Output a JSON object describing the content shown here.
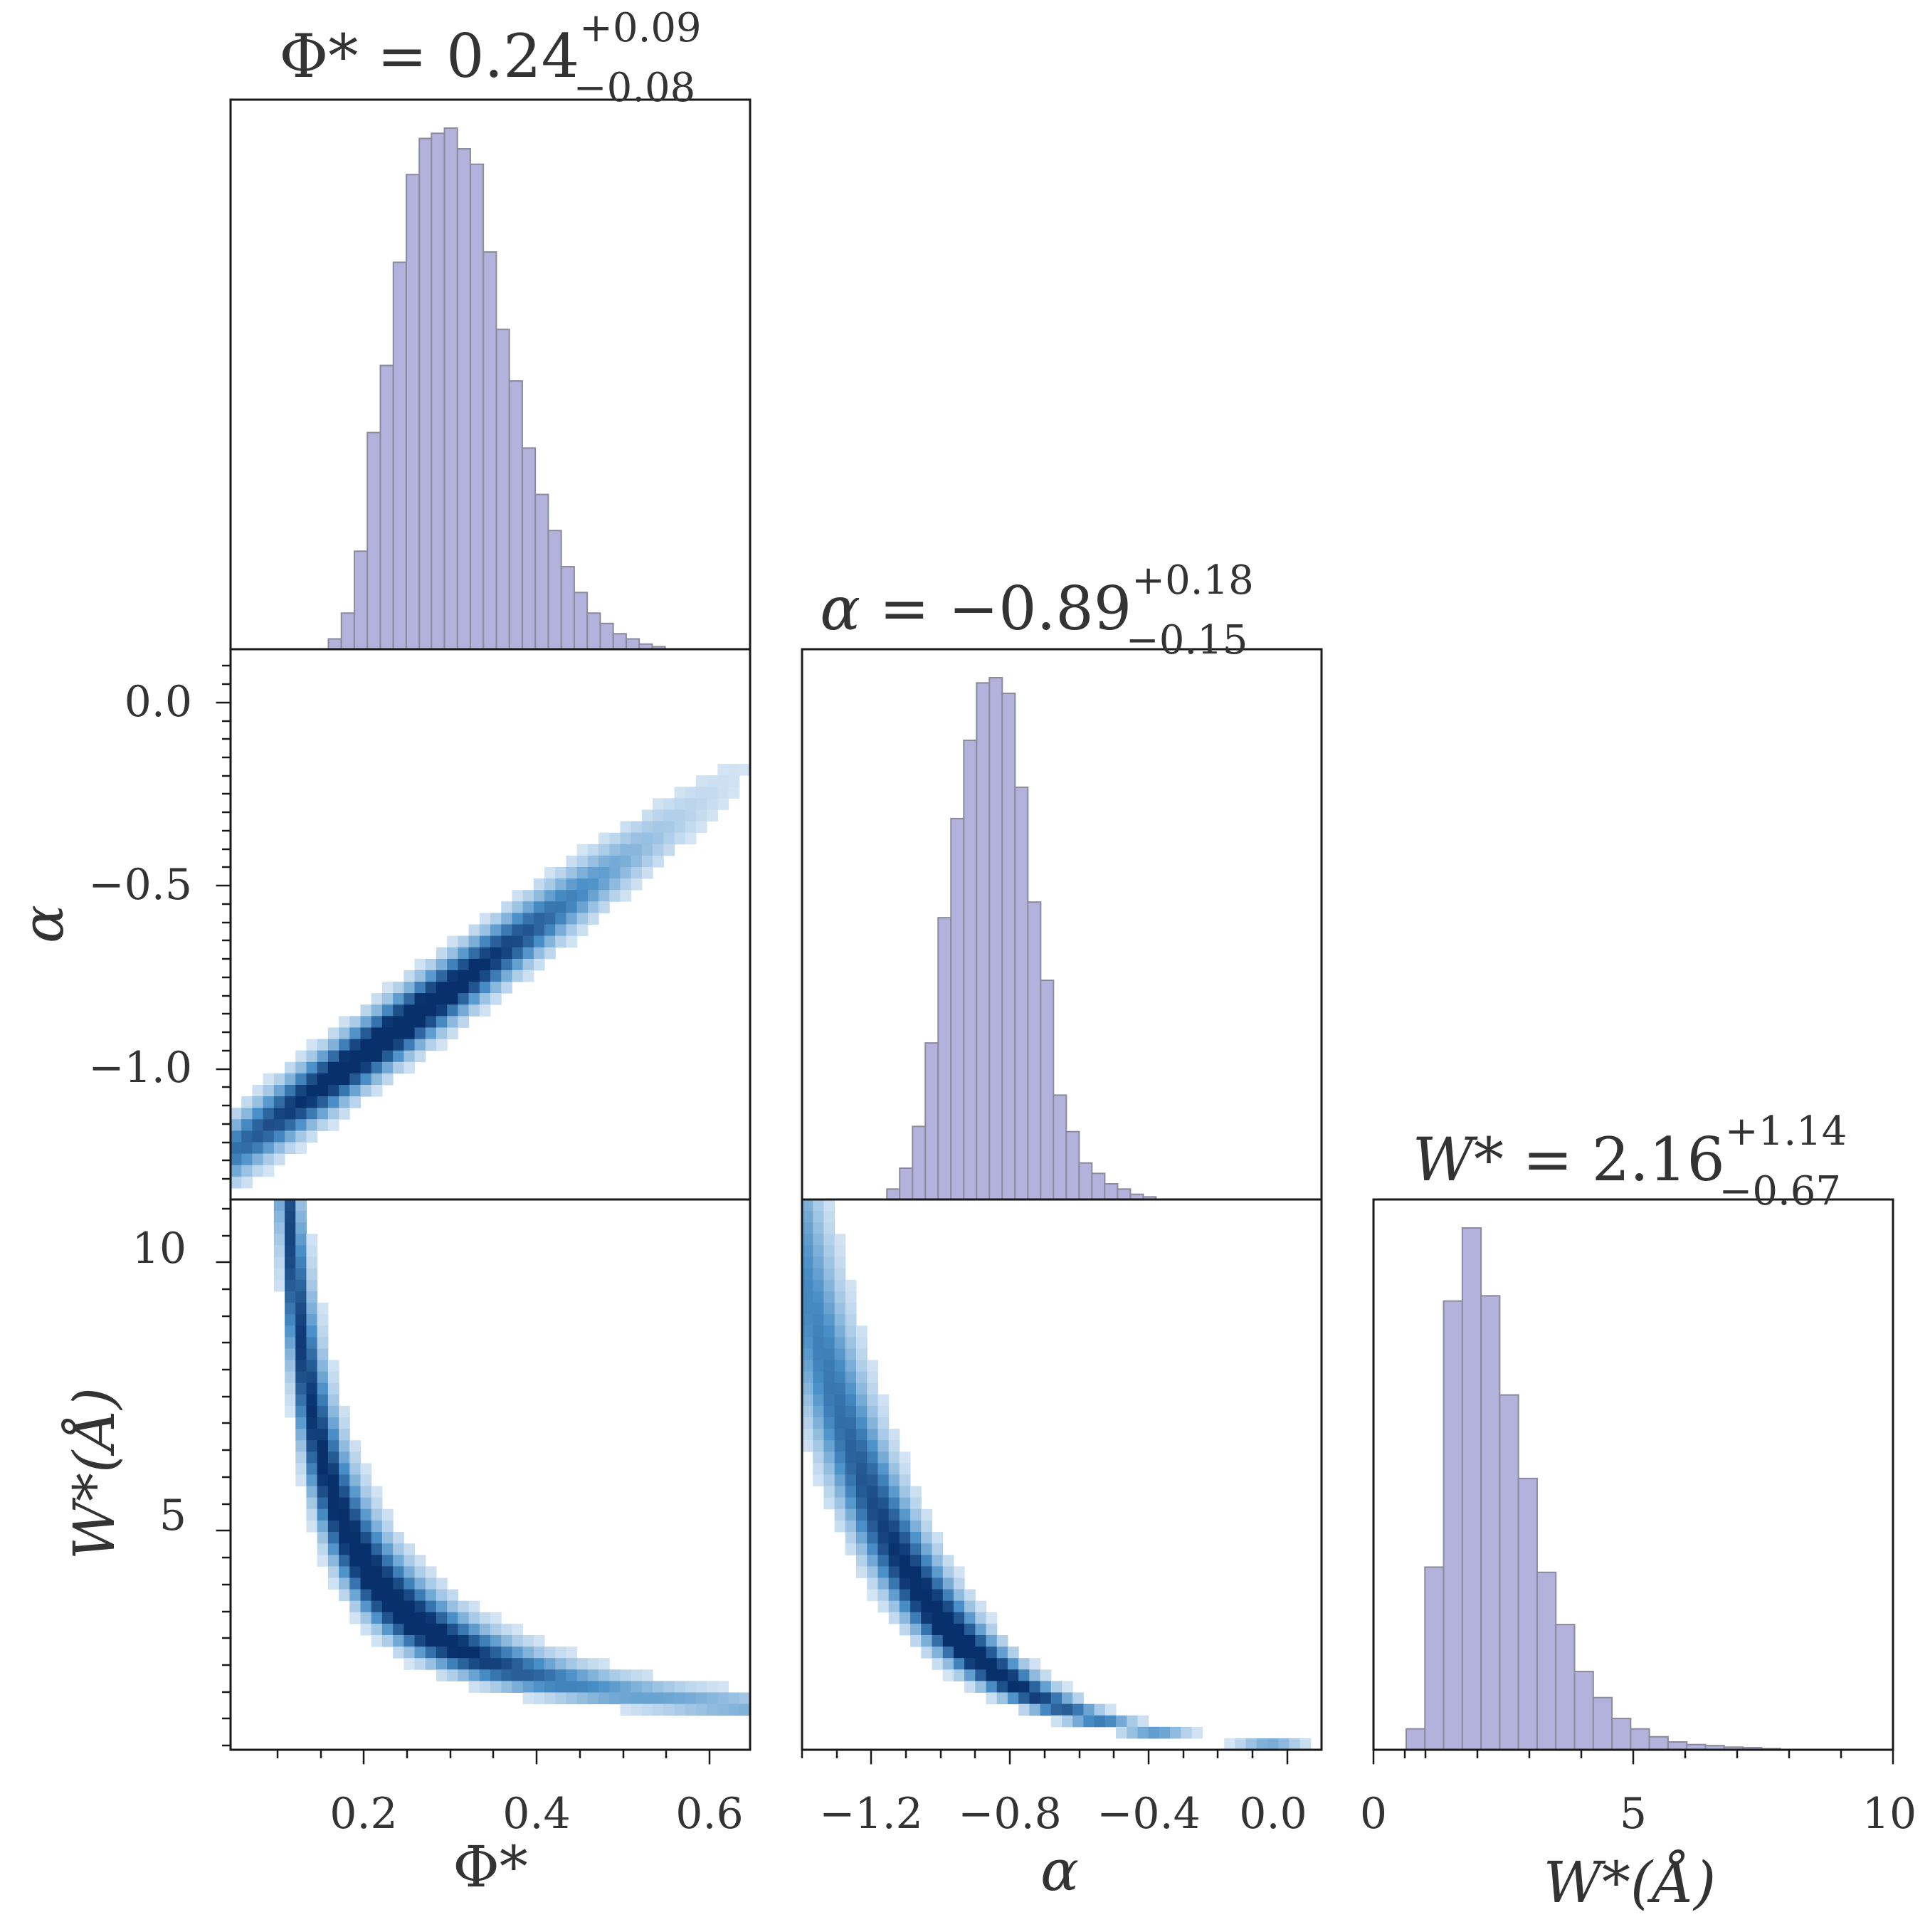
{
  "colors": {
    "hist_fill": "#b2b2dc",
    "hist_edge": "#8a8a9c",
    "density_low": "#e6f0fa",
    "density_high": "#08306b",
    "axes": "#1a1a1a",
    "text": "#333333"
  },
  "chart_data": [
    {
      "type": "bar",
      "panel": "hist-phi",
      "title": {
        "sym": "Φ*",
        "eq": " = 0.24",
        "plus": "+0.09",
        "minus": "−0.08"
      },
      "xlabel": "",
      "ylabel": "",
      "xlim": [
        0.05,
        0.65
      ],
      "bin_width": 0.0149,
      "bins_start": [
        0.163,
        0.178,
        0.193,
        0.208,
        0.223,
        0.238,
        0.253,
        0.268,
        0.282,
        0.297,
        0.312,
        0.327,
        0.342,
        0.357,
        0.372,
        0.387,
        0.402,
        0.417,
        0.432,
        0.447,
        0.462,
        0.477,
        0.492,
        0.507,
        0.522,
        0.537
      ],
      "values": [
        0.02,
        0.07,
        0.19,
        0.42,
        0.55,
        0.75,
        0.92,
        0.99,
        1.0,
        1.01,
        0.97,
        0.94,
        0.77,
        0.62,
        0.52,
        0.39,
        0.3,
        0.23,
        0.16,
        0.11,
        0.07,
        0.05,
        0.03,
        0.02,
        0.01,
        0.005
      ]
    },
    {
      "type": "bar",
      "panel": "hist-alpha",
      "title": {
        "sym": "α",
        "eq": " = −0.89",
        "plus": "+0.18",
        "minus": "−0.15"
      },
      "xlabel": "",
      "ylabel": "",
      "xlim": [
        -1.35,
        0.15
      ],
      "bin_width": 0.037,
      "bins_start": [
        -1.105,
        -1.068,
        -1.031,
        -0.994,
        -0.957,
        -0.92,
        -0.883,
        -0.846,
        -0.809,
        -0.772,
        -0.735,
        -0.698,
        -0.661,
        -0.624,
        -0.587,
        -0.55,
        -0.513,
        -0.476,
        -0.439,
        -0.402,
        -0.365
      ],
      "values": [
        0.02,
        0.06,
        0.14,
        0.3,
        0.54,
        0.73,
        0.88,
        0.99,
        1.0,
        0.97,
        0.79,
        0.57,
        0.42,
        0.2,
        0.13,
        0.07,
        0.05,
        0.03,
        0.02,
        0.01,
        0.005
      ]
    },
    {
      "type": "bar",
      "panel": "hist-wstar",
      "title": {
        "sym": "W*",
        "eq": " = 2.16",
        "plus": "+1.14",
        "minus": "−0.67"
      },
      "xlabel": "W*(Å)",
      "ylabel": "",
      "xlim": [
        0,
        10
      ],
      "xticks": [
        "0",
        "5",
        "10"
      ],
      "bin_width": 0.36,
      "bins_start": [
        0.63,
        0.99,
        1.35,
        1.71,
        2.07,
        2.43,
        2.79,
        3.15,
        3.51,
        3.87,
        4.23,
        4.59,
        4.95,
        5.31,
        5.67,
        6.03,
        6.39,
        6.75,
        7.11,
        7.47
      ],
      "values": [
        0.04,
        0.35,
        0.86,
        1.0,
        0.87,
        0.68,
        0.52,
        0.34,
        0.24,
        0.15,
        0.1,
        0.06,
        0.04,
        0.025,
        0.015,
        0.01,
        0.008,
        0.005,
        0.004,
        0.002
      ]
    },
    {
      "type": "heatmap",
      "panel": "density-phi-alpha",
      "xlabel": "",
      "ylabel": "α",
      "xlim": [
        0.05,
        0.65
      ],
      "ylim": [
        -1.35,
        0.15
      ],
      "yticks": [
        "0.0",
        "−0.5",
        "−1.0"
      ],
      "ridge": {
        "x0": 0.24,
        "y0": -0.89,
        "slope": 1.75
      },
      "spread": {
        "along": 0.075,
        "across": 0.055
      }
    },
    {
      "type": "heatmap",
      "panel": "density-phi-wstar",
      "xlabel": "Φ*",
      "ylabel": "W*(Å)",
      "xlim": [
        0.05,
        0.65
      ],
      "ylim": [
        0,
        11
      ],
      "xticks": [
        "0.2",
        "0.4",
        "0.6"
      ],
      "yticks": [
        "10",
        "5"
      ],
      "curve": {
        "a": 0.5,
        "b": 0.07,
        "x0": 0.24,
        "w0": 2.16
      },
      "spread": {
        "along": 0.08,
        "across": 0.18
      }
    },
    {
      "type": "heatmap",
      "panel": "density-alpha-wstar",
      "xlabel": "α",
      "ylabel": "",
      "xlim": [
        -1.35,
        0.15
      ],
      "ylim": [
        0,
        11
      ],
      "xticks": [
        "−1.2",
        "−0.8",
        "−0.4",
        "0.0"
      ],
      "curve": {
        "a": 2.5,
        "k": 3.2,
        "x0": -0.89,
        "w0": 2.16
      },
      "spread": {
        "along": 0.16,
        "across": 0.2
      }
    }
  ]
}
